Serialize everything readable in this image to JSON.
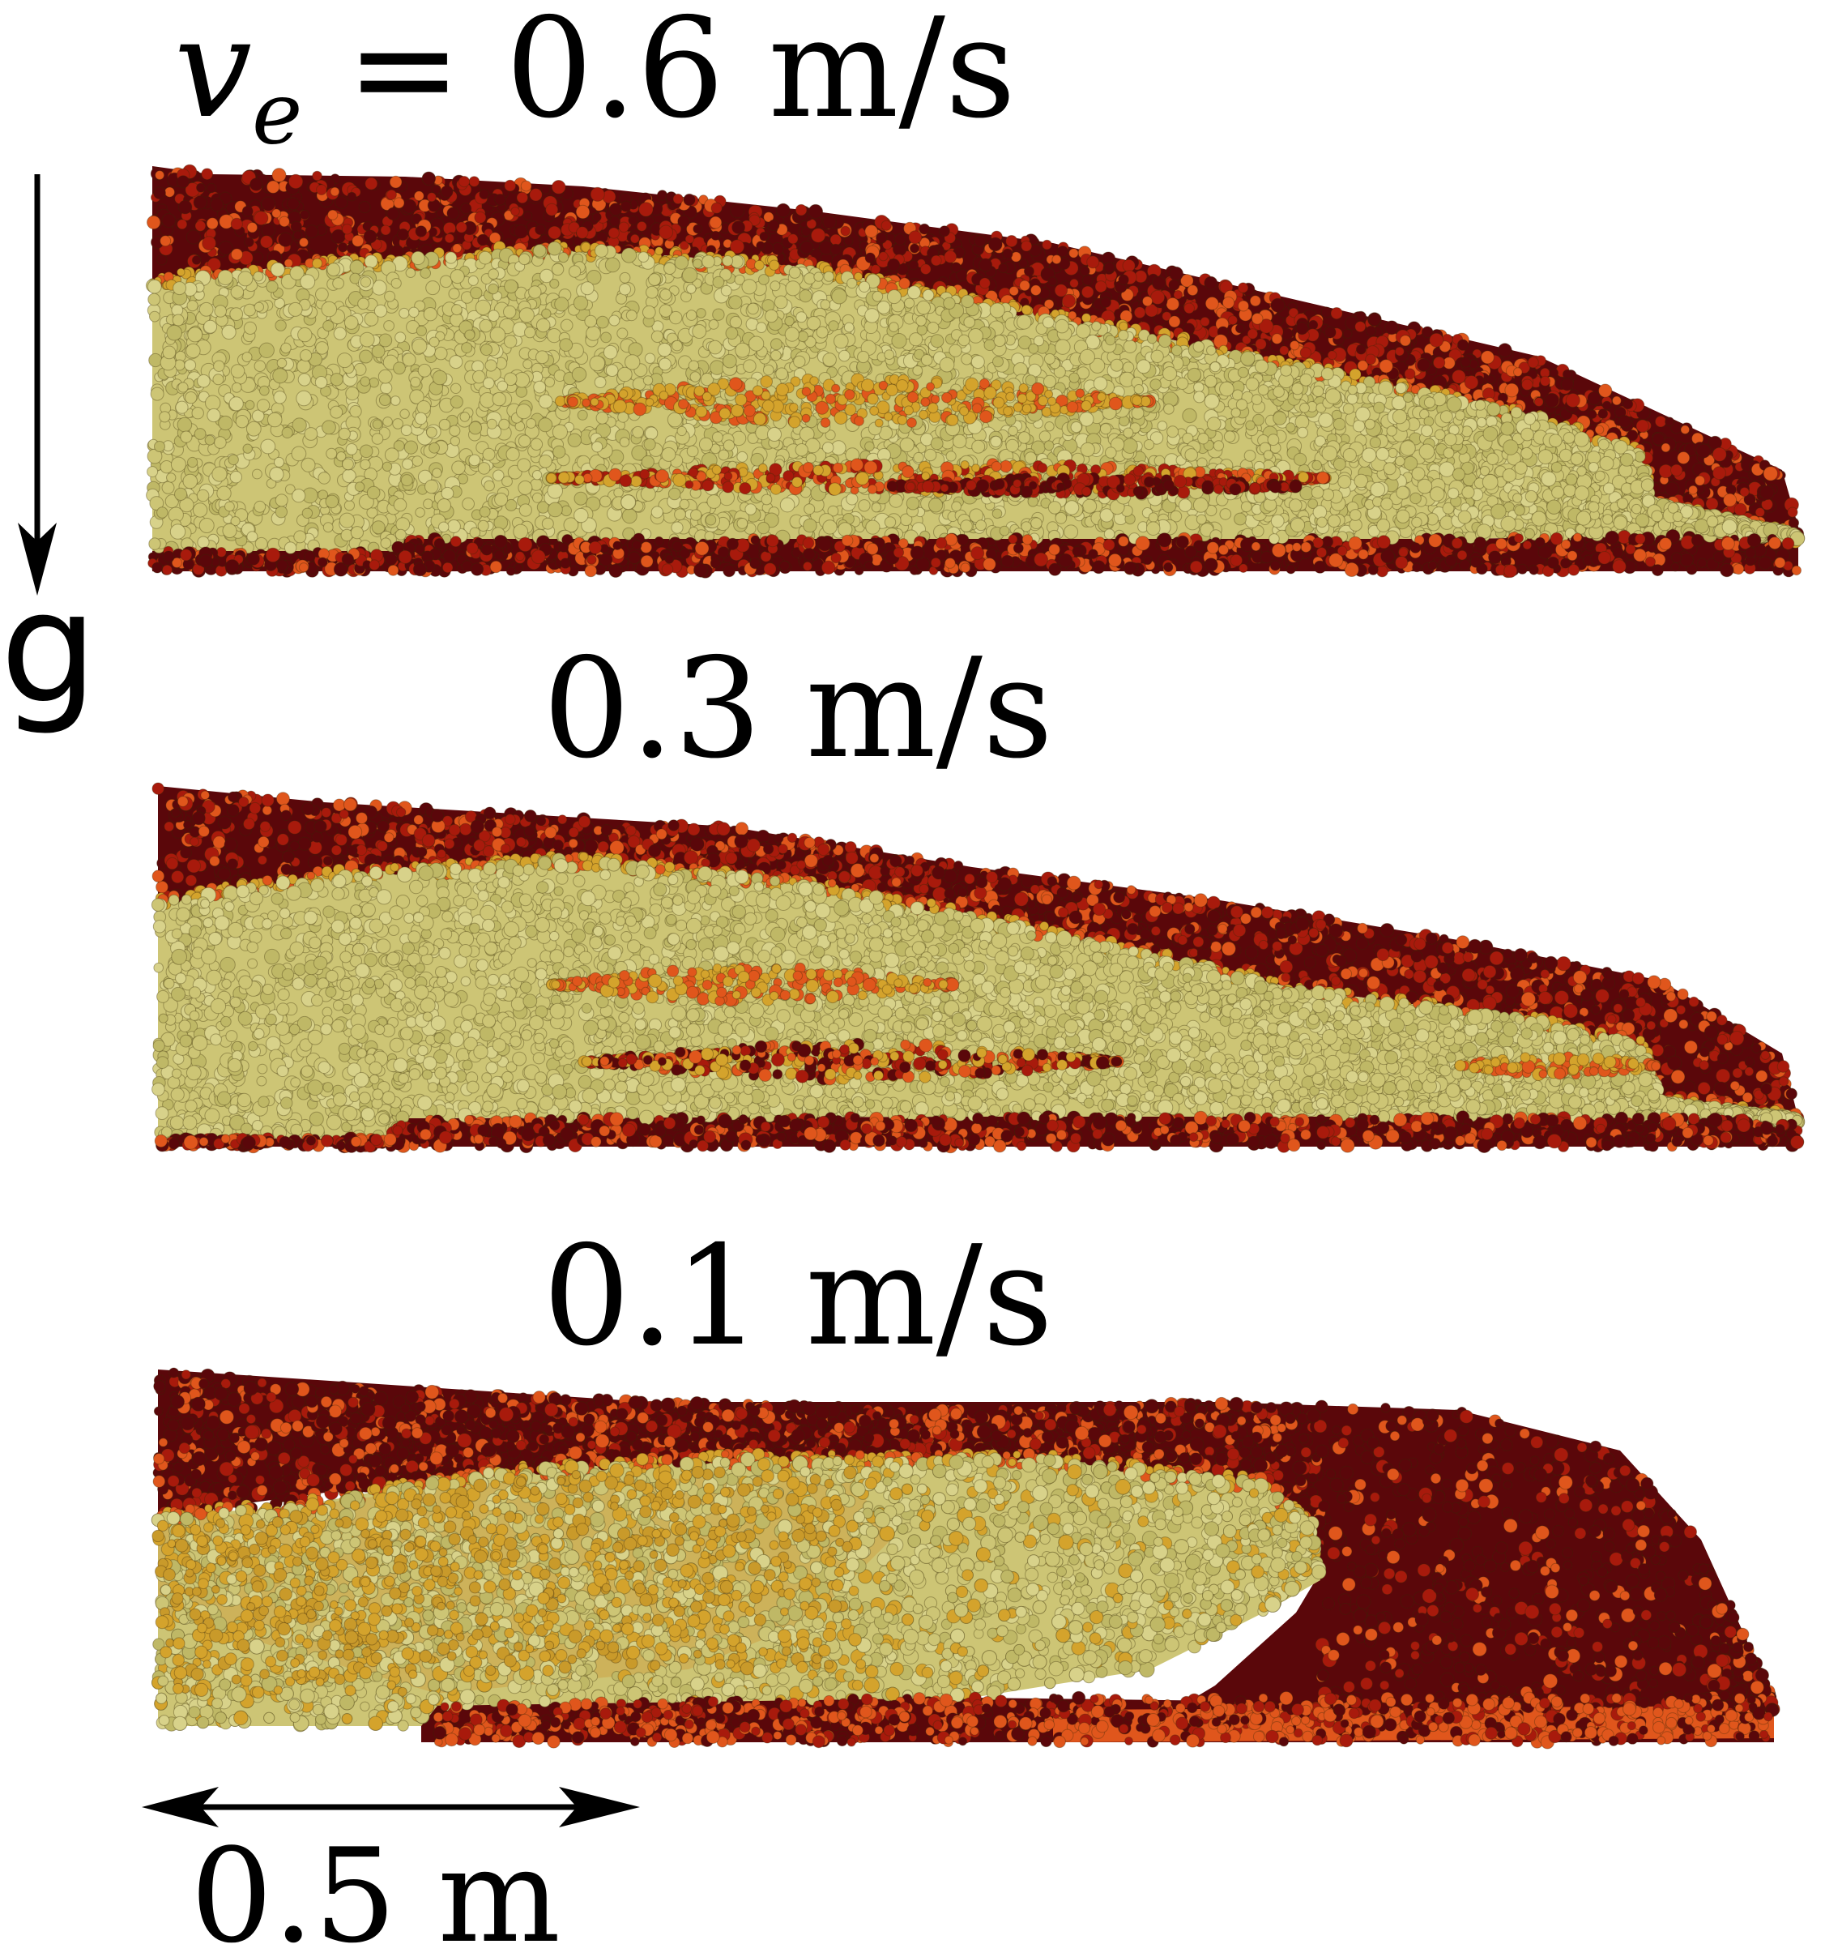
{
  "panels": [
    {
      "velocity_symbol": "v",
      "velocity_subscript": "e",
      "equals": "=",
      "label": "0.6 m/s"
    },
    {
      "label": "0.3 m/s"
    },
    {
      "label": "0.1 m/s"
    }
  ],
  "gravity": {
    "label": "g"
  },
  "scale_bar": {
    "label": "0.5 m"
  },
  "particle_colors": {
    "bulk": "#cdc575",
    "amber": "#d4a32c",
    "orange": "#e0561c",
    "red": "#a81a0c",
    "dark_red": "#5a070a"
  }
}
